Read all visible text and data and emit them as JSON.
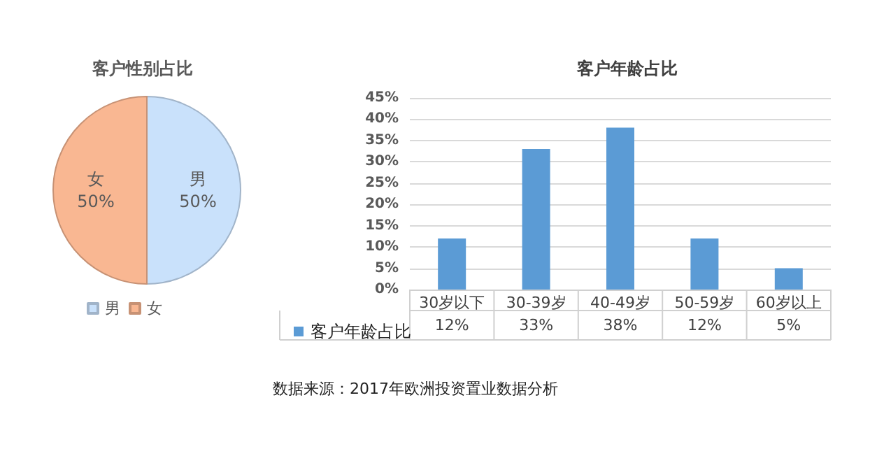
{
  "chart_data": [
    {
      "type": "pie",
      "title": "客户性别占比",
      "categories": [
        "男",
        "女"
      ],
      "values": [
        50,
        50
      ],
      "colors": [
        "#c9e1fb",
        "#f9b792"
      ],
      "value_labels": [
        "50%",
        "50%"
      ],
      "legend": "bottom"
    },
    {
      "type": "bar",
      "title": "客户年龄占比",
      "categories": [
        "30岁以下",
        "30-39岁",
        "40-49岁",
        "50-59岁",
        "60岁以上"
      ],
      "series": [
        {
          "name": "客户年龄占比",
          "color": "#5b9bd5",
          "values": [
            12,
            33,
            38,
            12,
            5
          ],
          "value_labels": [
            "12%",
            "33%",
            "38%",
            "12%",
            "5%"
          ]
        }
      ],
      "ylim": [
        0,
        45
      ],
      "yticks": [
        {
          "value": 0,
          "label": "0%"
        },
        {
          "value": 5,
          "label": "5%"
        },
        {
          "value": 10,
          "label": "10%"
        },
        {
          "value": 15,
          "label": "15%"
        },
        {
          "value": 20,
          "label": "20%"
        },
        {
          "value": 25,
          "label": "25%"
        },
        {
          "value": 30,
          "label": "30%"
        },
        {
          "value": 35,
          "label": "35%"
        },
        {
          "value": 40,
          "label": "40%"
        },
        {
          "value": 45,
          "label": "45%"
        }
      ],
      "grid": "y",
      "legend": "bottom left",
      "annotations": [
        "数据来源：2017年欧洲投资置业数据分析"
      ]
    }
  ]
}
